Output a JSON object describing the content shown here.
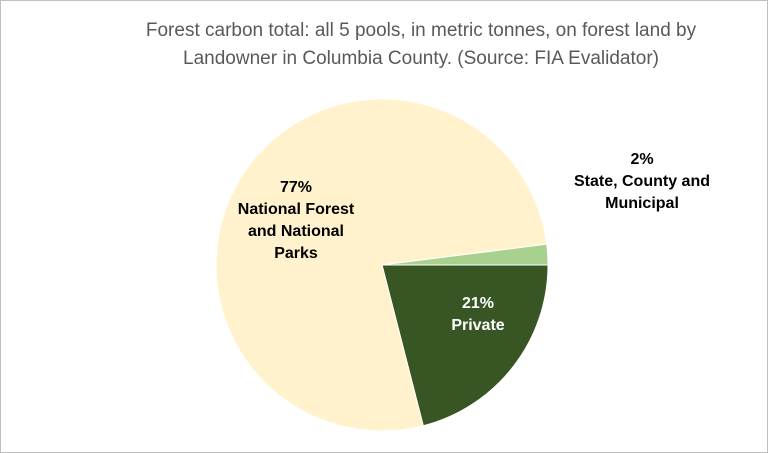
{
  "chart_data": {
    "type": "pie",
    "title_lines": [
      "Forest carbon total: all 5 pools, in metric tonnes, on forest land by",
      "Landowner in Columbia County.  (Source: FIA Evalidator)"
    ],
    "slices": [
      {
        "name": "Private",
        "value": 21,
        "label_lines": [
          "21%",
          "Private"
        ],
        "color": "#375623",
        "text_color": "#ffffff"
      },
      {
        "name": "National Forest and National Parks",
        "value": 77,
        "label_lines": [
          "77%",
          "National Forest",
          "and National",
          "Parks"
        ],
        "color": "#fff2cc",
        "text_color": "#000000"
      },
      {
        "name": "State, County and Municipal",
        "value": 2,
        "label_lines": [
          "2%",
          "State, County and",
          "Municipal"
        ],
        "color": "#a9d18e",
        "text_color": "#000000"
      }
    ]
  }
}
